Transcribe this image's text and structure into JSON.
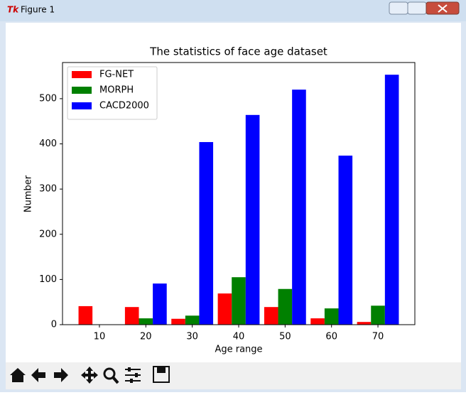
{
  "window": {
    "title": "Figure 1"
  },
  "chart_data": {
    "type": "bar",
    "title": "The statistics of face age dataset",
    "x_label": "Age range",
    "y_label": "Number",
    "x": [
      10,
      20,
      30,
      40,
      50,
      60,
      70
    ],
    "series": [
      {
        "name": "FG-NET",
        "color": "#ff0000",
        "values": [
          41,
          39,
          13,
          69,
          39,
          14,
          6
        ]
      },
      {
        "name": "MORPH",
        "color": "#008000",
        "values": [
          0,
          14,
          20,
          105,
          79,
          36,
          42
        ]
      },
      {
        "name": "CACD2000",
        "color": "#0000ff",
        "values": [
          0,
          91,
          404,
          464,
          520,
          374,
          553
        ]
      }
    ],
    "xlim": [
      2.05,
      77.95
    ],
    "xticks": [
      10,
      20,
      30,
      40,
      50,
      60,
      70
    ],
    "ylim": [
      0,
      580
    ],
    "yticks": [
      0,
      100,
      200,
      300,
      400,
      500
    ],
    "legend": "upper left",
    "grid": false
  }
}
